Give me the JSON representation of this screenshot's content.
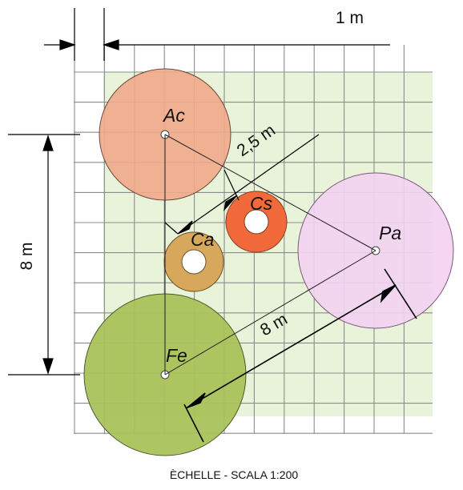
{
  "diagram": {
    "scale_marker": "1 m",
    "dim_radius": "2,5 m",
    "dim_vertical": "8 m",
    "dim_diagonal": "8 m",
    "caption": "ÈCHELLE  - SCALA 1:200",
    "trees": [
      {
        "label": "Ac",
        "color": "#f1a88a"
      },
      {
        "label": "Cs",
        "color": "#f26a3c"
      },
      {
        "label": "Ca",
        "color": "#d7a85c"
      },
      {
        "label": "Pa",
        "color": "#f3d2f1"
      },
      {
        "label": "Fe",
        "color": "#a9c25a"
      }
    ],
    "grid_color": "#8c8c8c",
    "plot_color": "#e8f3d9"
  }
}
